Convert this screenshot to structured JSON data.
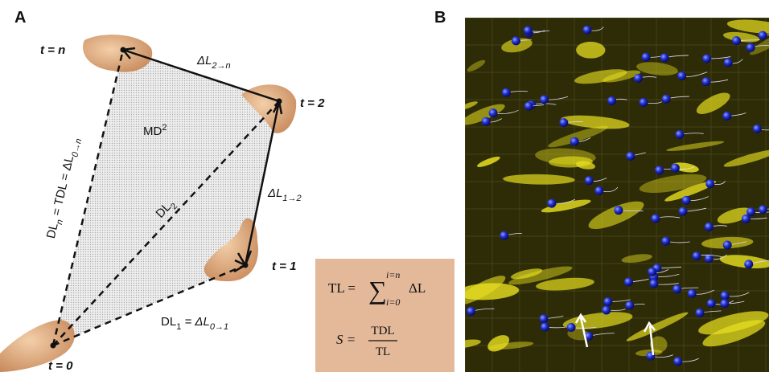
{
  "panel_a": {
    "label": "A",
    "time_points": {
      "t_n": "t = n",
      "t_2": "t = 2",
      "t_1": "t = 1",
      "t_0": "t = 0"
    },
    "step_2_n": {
      "base": "ΔL",
      "sub": "2→n"
    },
    "step_1_2": {
      "base": "ΔL",
      "sub": "1→2"
    },
    "area": {
      "base": "MD",
      "sup": "2"
    },
    "dl_2": {
      "base": "DL",
      "sub": "2"
    },
    "dl_n": {
      "base": "DL",
      "sub": "n",
      "rest": " = TDL = ΔL",
      "sub2": "0→n"
    },
    "dl_1": {
      "base": "DL",
      "sub": "1",
      "rest": " = ΔL",
      "sub2": "0→1"
    },
    "formula": {
      "tl_lhs": "TL = ",
      "sum": "∑",
      "upper": "i=n",
      "lower": "i=0",
      "term": "ΔL",
      "s_lhs": "S = ",
      "numerator": "TDL",
      "denominator": "TL"
    }
  },
  "panel_b": {
    "label": "B"
  }
}
